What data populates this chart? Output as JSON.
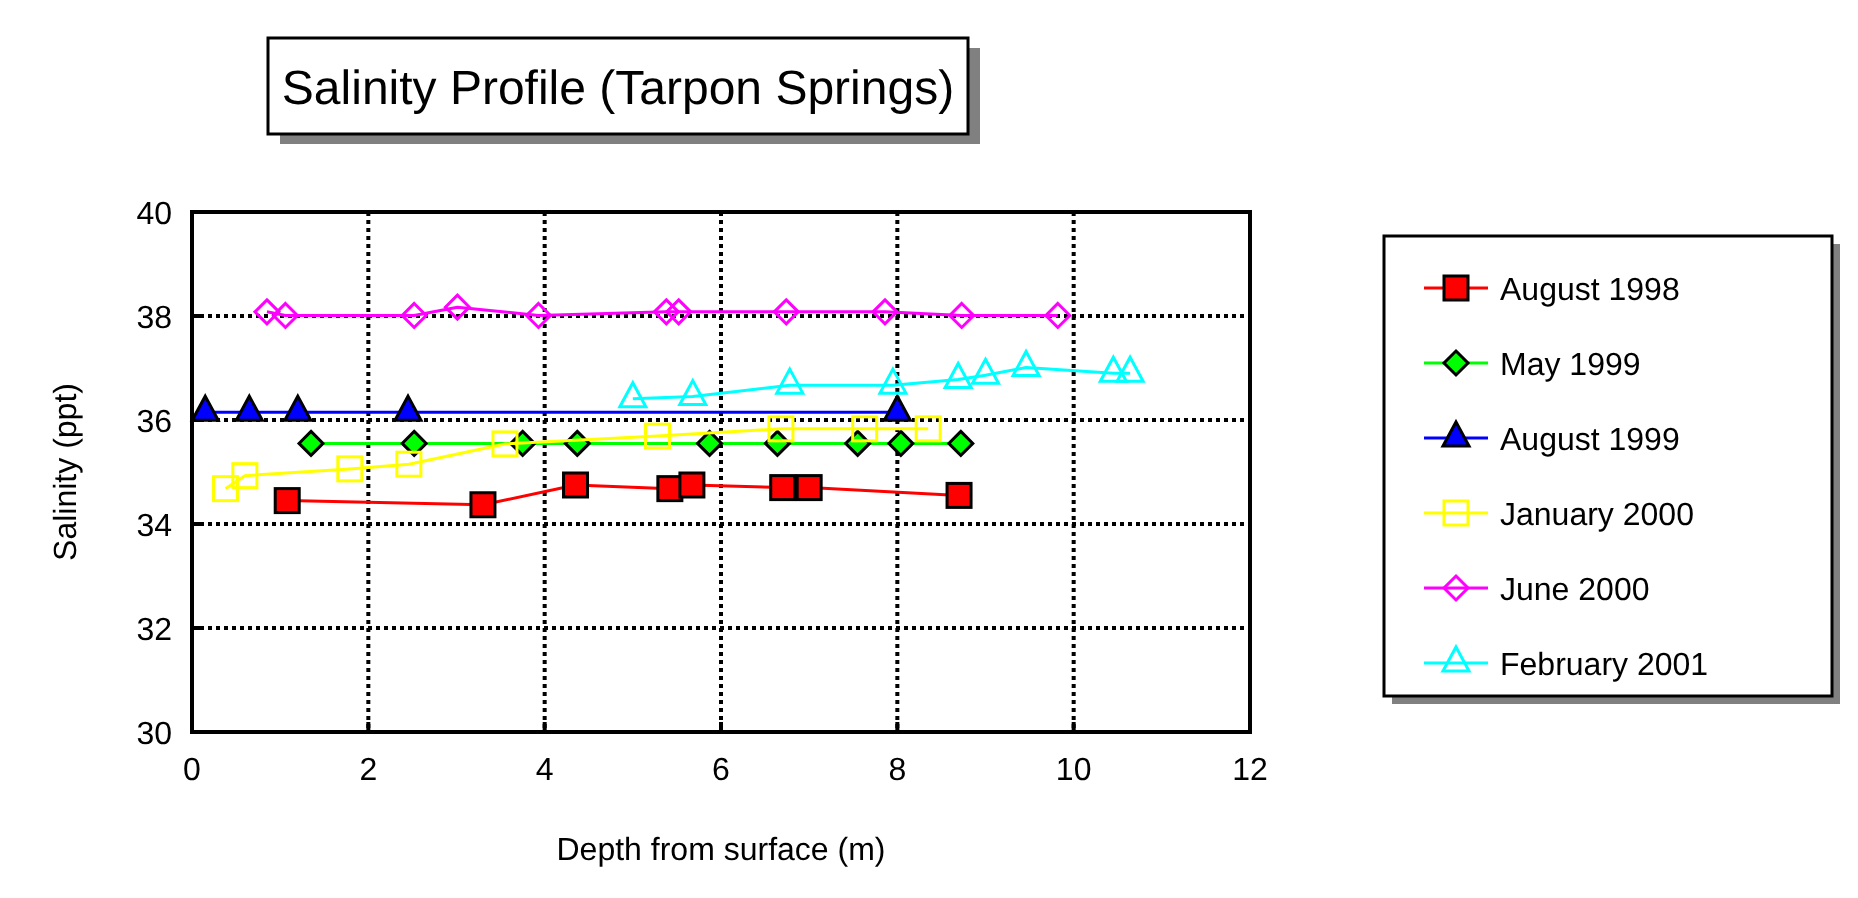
{
  "chart_data": {
    "type": "line",
    "title": "Salinity Profile (Tarpon Springs)",
    "xlabel": "Depth from surface (m)",
    "ylabel": "Salinity (ppt)",
    "xlim": [
      0,
      12
    ],
    "xticks": [
      0,
      2,
      4,
      6,
      8,
      10,
      12
    ],
    "ylim": [
      30,
      40
    ],
    "yticks": [
      30,
      32,
      34,
      36,
      38,
      40
    ],
    "grid": true,
    "legend": "right",
    "series": [
      {
        "name": "August 1998",
        "color": "#ff0000",
        "marker": "square",
        "x": [
          1.08,
          3.3,
          4.35,
          5.42,
          5.67,
          6.7,
          7.0,
          8.7
        ],
        "values": [
          34.45,
          34.37,
          34.75,
          34.68,
          34.75,
          34.7,
          34.7,
          34.55
        ]
      },
      {
        "name": "May 1999",
        "color": "#00ff00",
        "marker": "diamond",
        "x": [
          1.35,
          2.52,
          3.75,
          4.37,
          5.87,
          6.64,
          7.55,
          8.04,
          8.72
        ],
        "values": [
          35.55,
          35.55,
          35.55,
          35.55,
          35.55,
          35.55,
          35.55,
          35.55,
          35.55
        ]
      },
      {
        "name": "August 1999",
        "color": "#0000ff",
        "marker": "triangle",
        "x": [
          0.15,
          0.65,
          1.2,
          2.45,
          8.0
        ],
        "values": [
          36.15,
          36.15,
          36.15,
          36.15,
          36.15
        ]
      },
      {
        "name": "January 2000",
        "color": "#ffff00",
        "marker": "square",
        "x": [
          0.38,
          0.6,
          1.79,
          2.46,
          3.55,
          5.28,
          6.68,
          7.63,
          8.35
        ],
        "values": [
          34.68,
          34.93,
          35.06,
          35.15,
          35.54,
          35.69,
          35.83,
          35.83,
          35.83
        ]
      },
      {
        "name": "June 2000",
        "color": "#ff00ff",
        "marker": "diamond",
        "x": [
          0.85,
          1.06,
          2.52,
          3.01,
          3.93,
          5.38,
          5.52,
          6.74,
          7.86,
          8.73,
          9.82
        ],
        "values": [
          38.08,
          38.01,
          38.01,
          38.17,
          38.01,
          38.08,
          38.08,
          38.08,
          38.08,
          38.01,
          38.01
        ]
      },
      {
        "name": "February 2001",
        "color": "#00ffff",
        "marker": "triangle",
        "x": [
          5.0,
          5.68,
          6.78,
          7.95,
          8.69,
          9.0,
          9.46,
          10.45,
          10.64
        ],
        "values": [
          36.41,
          36.45,
          36.67,
          36.67,
          36.78,
          36.86,
          37.01,
          36.9,
          36.9
        ]
      }
    ]
  }
}
